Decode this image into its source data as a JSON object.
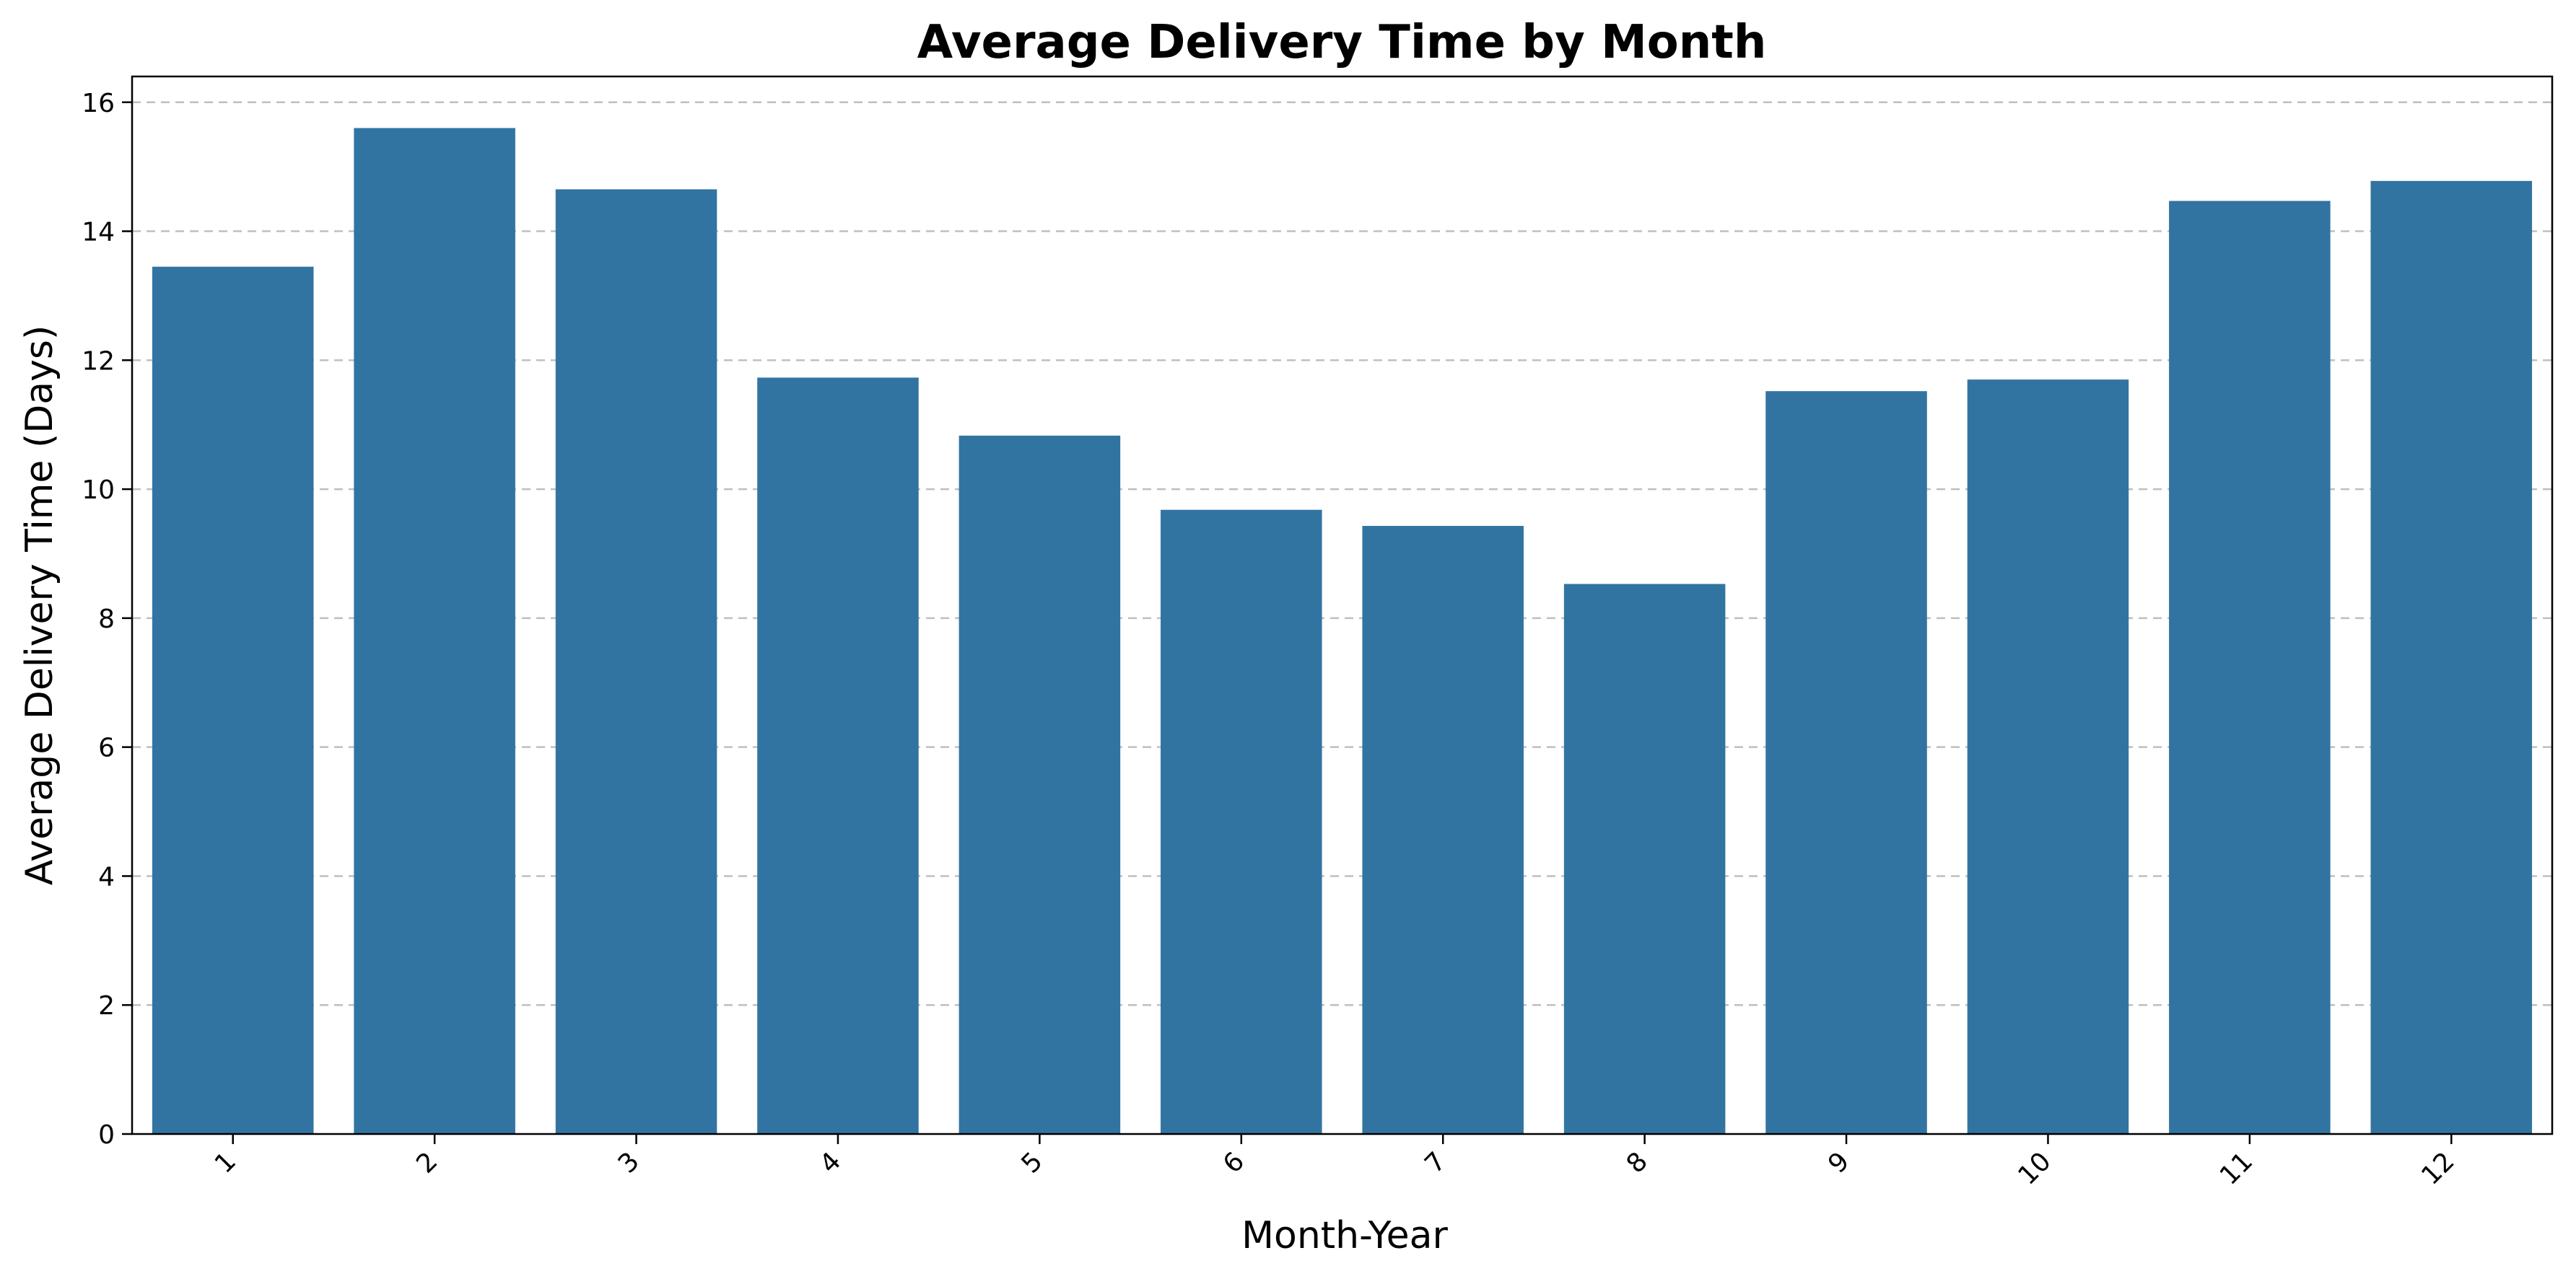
{
  "chart_data": {
    "type": "bar",
    "title": "Average Delivery Time by Month",
    "xlabel": "Month-Year",
    "ylabel": "Average Delivery Time (Days)",
    "categories": [
      "1",
      "2",
      "3",
      "4",
      "5",
      "6",
      "7",
      "8",
      "9",
      "10",
      "11",
      "12"
    ],
    "values": [
      13.45,
      15.6,
      14.65,
      11.73,
      10.83,
      9.68,
      9.43,
      8.53,
      11.52,
      11.7,
      14.47,
      14.78
    ],
    "ylim": [
      0,
      16.4
    ],
    "yticks": [
      0,
      2,
      4,
      6,
      8,
      10,
      12,
      14,
      16
    ],
    "grid": "y-dashed",
    "bar_color": "#3274a1",
    "xtick_rotation": 45
  }
}
